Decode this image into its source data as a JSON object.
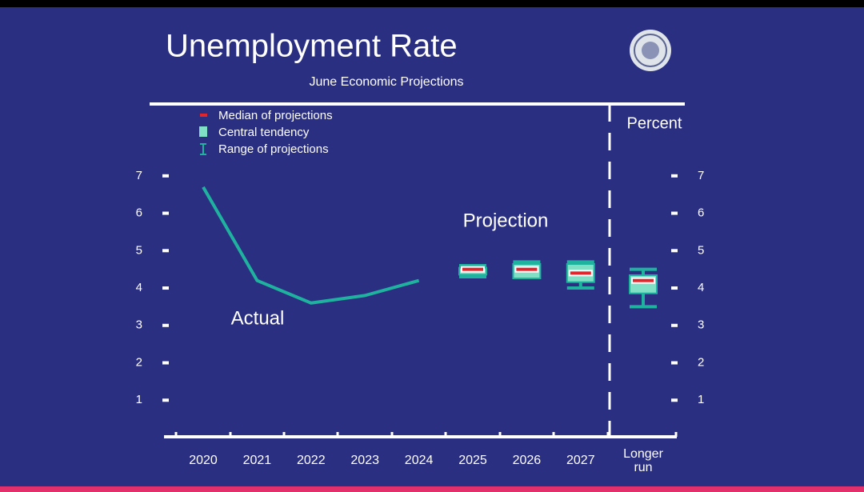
{
  "chart_data": {
    "type": "line",
    "title": "Unemployment Rate",
    "subtitle": "June Economic Projections",
    "y_label": "Percent",
    "categories": [
      "2020",
      "2021",
      "2022",
      "2023",
      "2024",
      "2025",
      "2026",
      "2027",
      "Longer run"
    ],
    "series": [
      {
        "name": "Actual",
        "color": "#1fb39f",
        "values": [
          6.7,
          4.2,
          3.6,
          3.8,
          4.2,
          null,
          null,
          null,
          null
        ]
      }
    ],
    "projections": {
      "name": "Projection",
      "legend": [
        "Median of projections",
        "Central tendency",
        "Range of projections"
      ],
      "median_color": "#e0262c",
      "central_color": "#7fe0c6",
      "range_color": "#1fb39f",
      "median": [
        null,
        null,
        null,
        null,
        null,
        4.5,
        4.5,
        4.4,
        4.2
      ],
      "central_low": [
        null,
        null,
        null,
        null,
        null,
        4.4,
        4.3,
        4.2,
        3.9
      ],
      "central_high": [
        null,
        null,
        null,
        null,
        null,
        4.5,
        4.6,
        4.6,
        4.3
      ],
      "range_low": [
        null,
        null,
        null,
        null,
        null,
        4.3,
        4.3,
        4.0,
        3.5
      ],
      "range_high": [
        null,
        null,
        null,
        null,
        null,
        4.6,
        4.7,
        4.7,
        4.5
      ]
    },
    "ylim": [
      0,
      8.9
    ],
    "yticks": [
      1,
      2,
      3,
      4,
      5,
      6,
      7
    ]
  }
}
